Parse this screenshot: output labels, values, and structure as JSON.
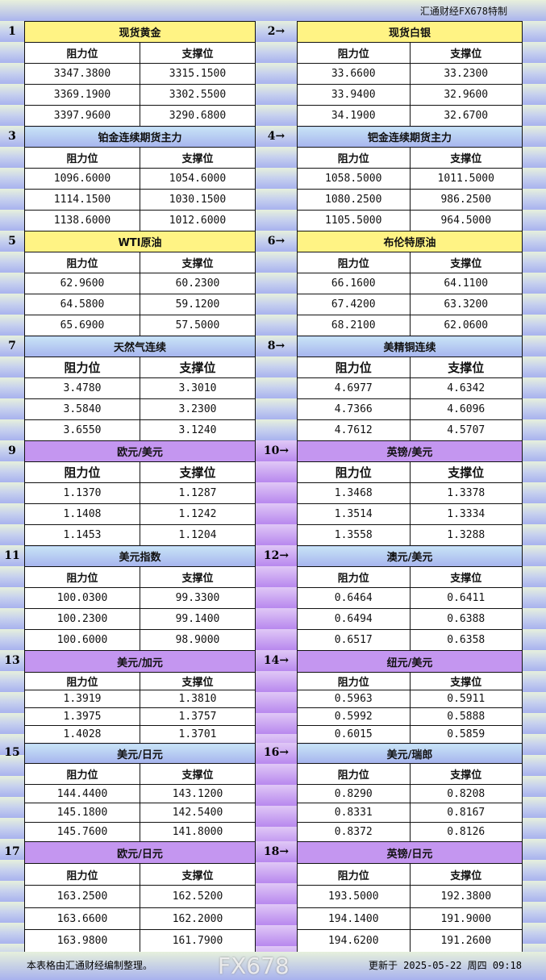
{
  "header": {
    "brand": "汇通财经FX678特制"
  },
  "labels": {
    "resistance": "阻力位",
    "support": "支撑位"
  },
  "colors": {
    "yellow": "#fff384",
    "blue": "#b8ccf2",
    "purple": "#c496f0"
  },
  "sections": [
    {
      "left": {
        "num": "1",
        "title": "现货黄金",
        "res": [
          "3347.3800",
          "3369.1900",
          "3397.9600"
        ],
        "sup": [
          "3315.1500",
          "3302.5500",
          "3290.6800"
        ]
      },
      "right": {
        "num": "2→",
        "title": "现货白银",
        "res": [
          "33.6600",
          "33.9400",
          "34.1900"
        ],
        "sup": [
          "33.2300",
          "32.9600",
          "32.6700"
        ]
      },
      "style": "yellow"
    },
    {
      "left": {
        "num": "3",
        "title": "铂金连续期货主力",
        "res": [
          "1096.6000",
          "1114.1500",
          "1138.6000"
        ],
        "sup": [
          "1054.6000",
          "1030.1500",
          "1012.6000"
        ]
      },
      "right": {
        "num": "4→",
        "title": "钯金连续期货主力",
        "res": [
          "1058.5000",
          "1080.2500",
          "1105.5000"
        ],
        "sup": [
          "1011.5000",
          "986.2500",
          "964.5000"
        ]
      },
      "style": "blue"
    },
    {
      "left": {
        "num": "5",
        "title": "WTI原油",
        "res": [
          "62.9600",
          "64.5800",
          "65.6900"
        ],
        "sup": [
          "60.2300",
          "59.1200",
          "57.5000"
        ]
      },
      "right": {
        "num": "6→",
        "title": "布伦特原油",
        "res": [
          "66.1600",
          "67.4200",
          "68.2100"
        ],
        "sup": [
          "64.1100",
          "63.3200",
          "62.0600"
        ]
      },
      "style": "yellow"
    },
    {
      "left": {
        "num": "7",
        "title": "天然气连续",
        "res": [
          "3.4780",
          "3.5840",
          "3.6550"
        ],
        "sup": [
          "3.3010",
          "3.2300",
          "3.1240"
        ]
      },
      "right": {
        "num": "8→",
        "title": "美精铜连续",
        "res": [
          "4.6977",
          "4.7366",
          "4.7612"
        ],
        "sup": [
          "4.6342",
          "4.6096",
          "4.5707"
        ]
      },
      "style": "blue"
    },
    {
      "left": {
        "num": "9",
        "title": "欧元/美元",
        "res": [
          "1.1370",
          "1.1408",
          "1.1453"
        ],
        "sup": [
          "1.1287",
          "1.1242",
          "1.1204"
        ]
      },
      "right": {
        "num": "10→",
        "title": "英镑/美元",
        "res": [
          "1.3468",
          "1.3514",
          "1.3558"
        ],
        "sup": [
          "1.3378",
          "1.3334",
          "1.3288"
        ]
      },
      "style": "purple"
    },
    {
      "left": {
        "num": "11",
        "title": "美元指数",
        "res": [
          "100.0300",
          "100.2300",
          "100.6000"
        ],
        "sup": [
          "99.3300",
          "99.1400",
          "98.9000"
        ]
      },
      "right": {
        "num": "12→",
        "title": "澳元/美元",
        "res": [
          "0.6464",
          "0.6494",
          "0.6517"
        ],
        "sup": [
          "0.6411",
          "0.6388",
          "0.6358"
        ]
      },
      "style": "blue"
    },
    {
      "left": {
        "num": "13",
        "title": "美元/加元",
        "res": [
          "1.3919",
          "1.3975",
          "1.4028"
        ],
        "sup": [
          "1.3810",
          "1.3757",
          "1.3701"
        ]
      },
      "right": {
        "num": "14→",
        "title": "纽元/美元",
        "res": [
          "0.5963",
          "0.5992",
          "0.6015"
        ],
        "sup": [
          "0.5911",
          "0.5888",
          "0.5859"
        ]
      },
      "style": "purple"
    },
    {
      "left": {
        "num": "15",
        "title": "美元/日元",
        "res": [
          "144.4400",
          "145.1800",
          "145.7600"
        ],
        "sup": [
          "143.1200",
          "142.5400",
          "141.8000"
        ]
      },
      "right": {
        "num": "16→",
        "title": "美元/瑞郎",
        "res": [
          "0.8290",
          "0.8331",
          "0.8372"
        ],
        "sup": [
          "0.8208",
          "0.8167",
          "0.8126"
        ]
      },
      "style": "blue"
    },
    {
      "left": {
        "num": "17",
        "title": "欧元/日元",
        "res": [
          "163.2500",
          "163.6600",
          "163.9800"
        ],
        "sup": [
          "162.5200",
          "162.2000",
          "161.7900"
        ]
      },
      "right": {
        "num": "18→",
        "title": "英镑/日元",
        "res": [
          "193.5000",
          "194.1400",
          "194.6200"
        ],
        "sup": [
          "192.3800",
          "191.9000",
          "191.2600"
        ]
      },
      "style": "purple"
    }
  ],
  "footer": {
    "note": "本表格由汇通财经编制整理。",
    "updated": "更新于 2025-05-22 周四 09:18",
    "watermark": "FX678"
  }
}
